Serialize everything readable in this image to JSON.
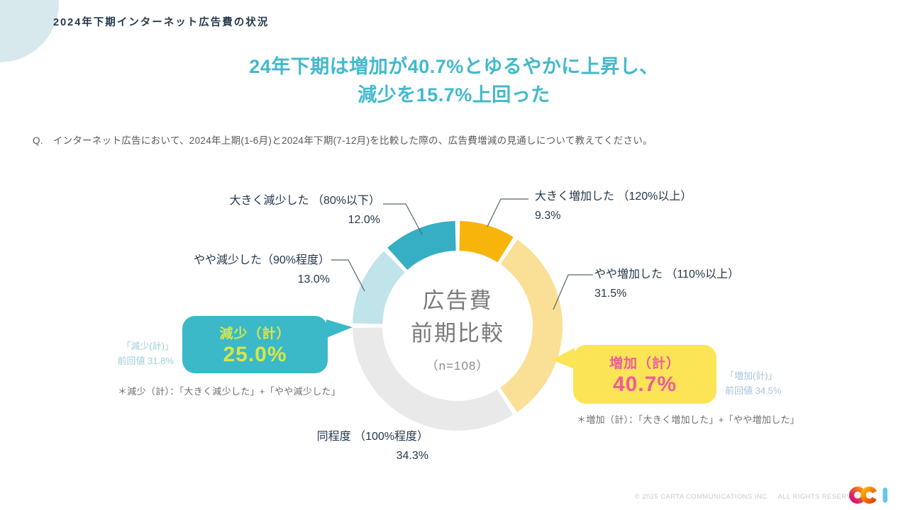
{
  "page": {
    "header": "2024年下期インターネット広告費の状況",
    "title_line1": "24年下期は増加が40.7%とゆるやかに上昇し、",
    "title_line2": "減少を15.7%上回った",
    "question": "Q.　インターネット広告において、2024年上期(1-6月)と2024年下期(7-12月)を比較した際の、広告費増減の見通しについて教えてください。",
    "footer": "© 2025 CARTA COMMUNICATIONS INC.　 ALL RIGHTS RESERVED.",
    "logo_text": "cci",
    "accent_title_color": "#42B9CC",
    "text_color": "#24384C"
  },
  "chart_data": {
    "type": "pie",
    "donut": true,
    "title": "広告費前期比較",
    "center_line1": "広告費",
    "center_line2": "前期比較",
    "center_sub": "（n=108）",
    "start_angle_deg": 0,
    "clockwise": true,
    "units": "%",
    "segments": [
      {
        "label": "大きく増加した （120%以上）",
        "value": 9.3,
        "pct": "9.3%",
        "color": "#F7B50C"
      },
      {
        "label": "やや増加した （110%以上）",
        "value": 31.5,
        "pct": "31.5%",
        "color": "#FAE096"
      },
      {
        "label": "同程度 （100%程度）",
        "value": 34.3,
        "pct": "34.3%",
        "color": "#E9E9E9"
      },
      {
        "label": "やや減少した（90%程度）",
        "value": 13.0,
        "pct": "13.0%",
        "color": "#C1E3EA"
      },
      {
        "label": "大きく減少した （80%以下）",
        "value": 12.0,
        "pct": "12.0%",
        "color": "#36AEC3"
      }
    ]
  },
  "callouts": {
    "decrease": {
      "title": "減少（計）",
      "value": "25.0%",
      "box_color": "#3BB9C8",
      "text_color": "#D9E647",
      "prev_label": "「減少(計)」",
      "prev_value": "前回値 31.8%",
      "note": "＊減少（計）：「大きく減少した」+「やや減少した」"
    },
    "increase": {
      "title": "増加（計）",
      "value": "40.7%",
      "box_color": "#FBE456",
      "text_color": "#EE5C9C",
      "prev_label": "「増加(計)」",
      "prev_value": "前回値 34.5%",
      "note": "＊増加（計）：「大きく増加した」+「やや増加した」"
    }
  }
}
